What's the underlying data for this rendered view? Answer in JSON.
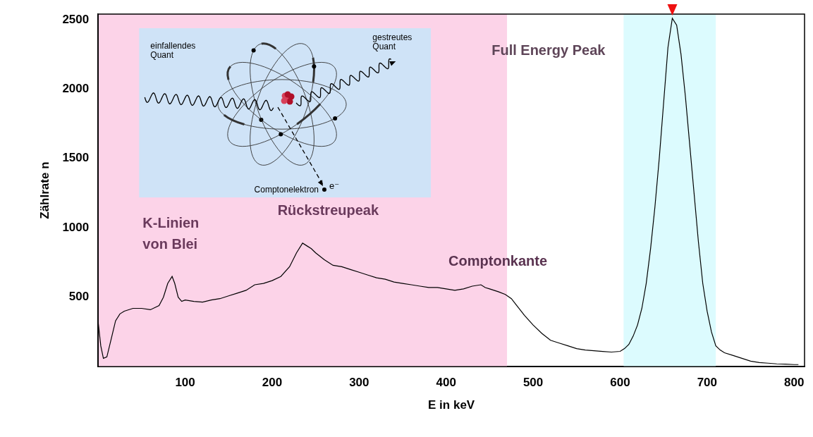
{
  "chart_data": {
    "type": "line",
    "x_label": "E in keV",
    "y_label": "Zählrate n",
    "color": "#000000",
    "x": [
      0,
      3,
      6,
      10,
      15,
      20,
      25,
      30,
      40,
      50,
      60,
      70,
      75,
      80,
      85,
      88,
      92,
      96,
      100,
      110,
      120,
      130,
      140,
      150,
      160,
      170,
      180,
      190,
      200,
      210,
      220,
      228,
      235,
      240,
      245,
      250,
      260,
      270,
      280,
      290,
      300,
      310,
      320,
      330,
      340,
      350,
      360,
      370,
      380,
      390,
      400,
      410,
      420,
      430,
      440,
      445,
      450,
      460,
      468,
      475,
      480,
      490,
      500,
      510,
      520,
      530,
      540,
      550,
      560,
      570,
      580,
      590,
      600,
      605,
      610,
      615,
      620,
      625,
      630,
      635,
      640,
      645,
      650,
      655,
      660,
      665,
      670,
      675,
      680,
      685,
      690,
      695,
      700,
      705,
      710,
      715,
      720,
      730,
      740,
      750,
      760,
      770,
      780,
      790,
      800,
      805
    ],
    "values": [
      320,
      150,
      60,
      70,
      200,
      330,
      380,
      400,
      420,
      420,
      410,
      440,
      500,
      600,
      650,
      600,
      500,
      470,
      480,
      470,
      465,
      480,
      490,
      510,
      530,
      550,
      590,
      600,
      620,
      650,
      720,
      820,
      890,
      870,
      850,
      820,
      770,
      730,
      720,
      700,
      680,
      660,
      640,
      630,
      610,
      600,
      590,
      580,
      570,
      570,
      560,
      550,
      560,
      580,
      590,
      570,
      560,
      540,
      520,
      490,
      450,
      370,
      300,
      240,
      190,
      170,
      150,
      130,
      120,
      115,
      110,
      105,
      110,
      130,
      160,
      220,
      300,
      420,
      600,
      850,
      1150,
      1500,
      1900,
      2300,
      2510,
      2460,
      2250,
      1950,
      1600,
      1250,
      900,
      600,
      400,
      250,
      150,
      120,
      100,
      80,
      60,
      40,
      30,
      25,
      20,
      18,
      15,
      15
    ],
    "xlim": [
      0,
      812
    ],
    "xticks": [
      100,
      200,
      300,
      400,
      500,
      600,
      700,
      800
    ],
    "ylim": [
      0,
      2540
    ],
    "yticks": [
      500,
      1000,
      1500,
      2000,
      2500
    ],
    "grid": false,
    "regions": [
      {
        "xmin": 0,
        "xmax": 470,
        "color": "#fcd3e8"
      },
      {
        "xmin": 604,
        "xmax": 710,
        "color": "#dcfbfe"
      }
    ],
    "annotations": [
      {
        "lines": [
          "Full Energy Peak"
        ]
      },
      {
        "lines": [
          "K-Linien",
          "von Blei"
        ]
      },
      {
        "lines": [
          "Rückstreupeak"
        ]
      },
      {
        "lines": [
          "Comptonkante"
        ]
      }
    ],
    "inset": {
      "incident": [
        "einfallendes",
        "Quant"
      ],
      "scattered": [
        "gestreutes",
        "Quant"
      ],
      "electron": "Comptonelektron",
      "electron_symbol": "e⁻"
    }
  }
}
